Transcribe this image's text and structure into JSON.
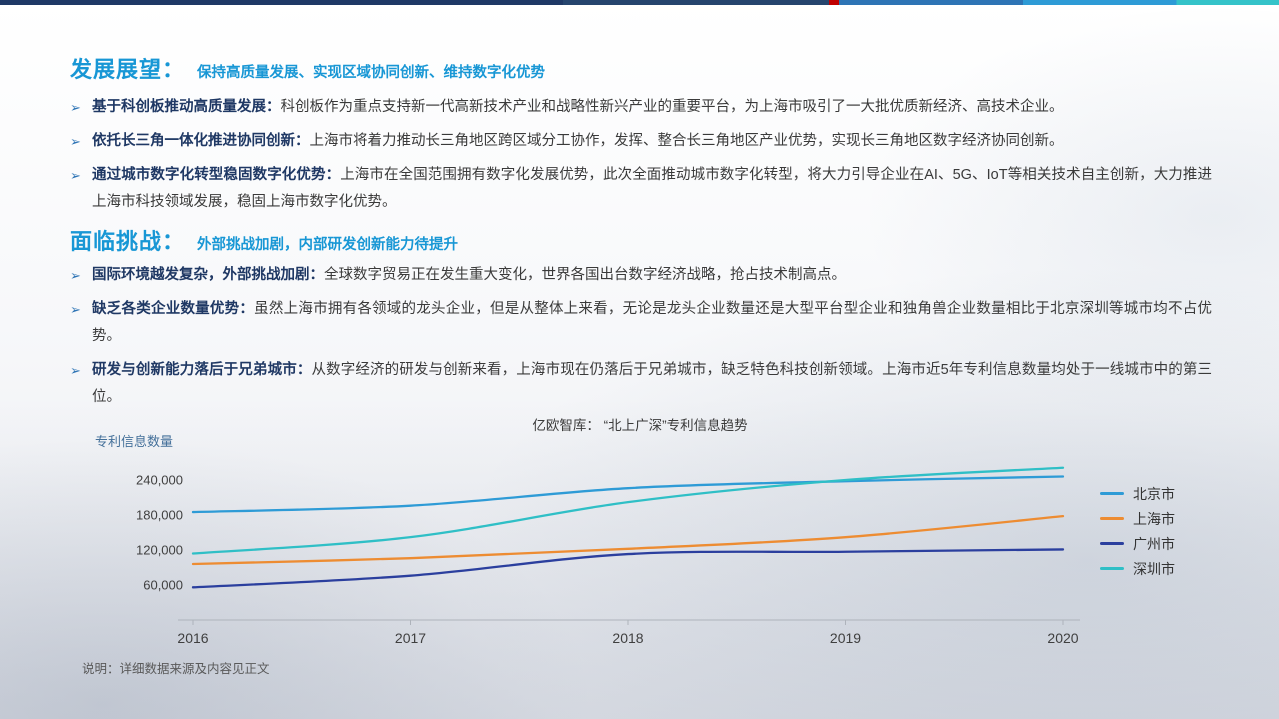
{
  "section1": {
    "title": "发展展望：",
    "subtitle": "保持高质量发展、实现区域协同创新、维持数字化优势",
    "bullets": [
      {
        "lead": "基于科创板推动高质量发展：",
        "text": "科创板作为重点支持新一代高新技术产业和战略性新兴产业的重要平台，为上海市吸引了一大批优质新经济、高技术企业。"
      },
      {
        "lead": "依托长三角一体化推进协同创新：",
        "text": "上海市将着力推动长三角地区跨区域分工协作，发挥、整合长三角地区产业优势，实现长三角地区数字经济协同创新。"
      },
      {
        "lead": "通过城市数字化转型稳固数字化优势：",
        "text": "上海市在全国范围拥有数字化发展优势，此次全面推动城市数字化转型，将大力引导企业在AI、5G、IoT等相关技术自主创新，大力推进上海市科技领域发展，稳固上海市数字化优势。"
      }
    ]
  },
  "section2": {
    "title": "面临挑战：",
    "subtitle": "外部挑战加剧，内部研发创新能力待提升",
    "bullets": [
      {
        "lead": "国际环境越发复杂，外部挑战加剧：",
        "text": "全球数字贸易正在发生重大变化，世界各国出台数字经济战略，抢占技术制高点。"
      },
      {
        "lead": "缺乏各类企业数量优势：",
        "text": "虽然上海市拥有各领域的龙头企业，但是从整体上来看，无论是龙头企业数量还是大型平台型企业和独角兽企业数量相比于北京深圳等城市均不占优势。"
      },
      {
        "lead": "研发与创新能力落后于兄弟城市：",
        "text": "从数字经济的研发与创新来看，上海市现在仍落后于兄弟城市，缺乏特色科技创新领域。上海市近5年专利信息数量均处于一线城市中的第三位。"
      }
    ]
  },
  "chart_data": {
    "type": "line",
    "title": "亿欧智库： “北上广深”专利信息趋势",
    "ylabel": "专利信息数量",
    "x": [
      2016,
      2017,
      2018,
      2019,
      2020
    ],
    "yticks": [
      60000,
      120000,
      180000,
      240000
    ],
    "ylim": [
      0,
      280000
    ],
    "grid": false,
    "legend_position": "right",
    "series": [
      {
        "name": "北京市",
        "color": "#2E9BD6",
        "values": [
          185000,
          196000,
          226000,
          238000,
          246000
        ]
      },
      {
        "name": "上海市",
        "color": "#ED8C32",
        "values": [
          96000,
          106000,
          122000,
          142000,
          178000
        ]
      },
      {
        "name": "广州市",
        "color": "#2B3F9E",
        "values": [
          56000,
          76000,
          113000,
          117000,
          121000
        ]
      },
      {
        "name": "深圳市",
        "color": "#2FBFC6",
        "values": [
          114000,
          142000,
          202000,
          240000,
          261000
        ]
      }
    ]
  },
  "footnote": "说明：详细数据来源及内容见正文"
}
